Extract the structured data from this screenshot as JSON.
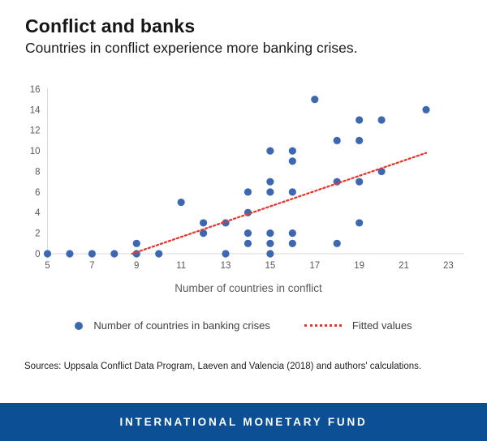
{
  "header": {
    "title": "Conflict and banks",
    "subtitle": "Countries in conflict experience more banking crises."
  },
  "chart_data": {
    "type": "scatter",
    "title": "Conflict and banks",
    "xlabel": "Number of countries in conflict",
    "ylabel": "",
    "xlim": [
      5,
      23
    ],
    "ylim": [
      0,
      16
    ],
    "x_ticks": [
      5,
      7,
      9,
      11,
      13,
      15,
      17,
      19,
      21,
      23
    ],
    "y_ticks": [
      0,
      2,
      4,
      6,
      8,
      10,
      12,
      14,
      16
    ],
    "grid": false,
    "legend_position": "bottom",
    "series": [
      {
        "name": "Number of countries in banking crises",
        "type": "scatter",
        "color": "#3d68b1",
        "points": [
          [
            5,
            0
          ],
          [
            6,
            0
          ],
          [
            7,
            0
          ],
          [
            8,
            0
          ],
          [
            9,
            0
          ],
          [
            9,
            1
          ],
          [
            10,
            0
          ],
          [
            11,
            5
          ],
          [
            12,
            2
          ],
          [
            12,
            3
          ],
          [
            13,
            0
          ],
          [
            13,
            3
          ],
          [
            14,
            1
          ],
          [
            14,
            2
          ],
          [
            14,
            4
          ],
          [
            14,
            6
          ],
          [
            15,
            0
          ],
          [
            15,
            1
          ],
          [
            15,
            2
          ],
          [
            15,
            6
          ],
          [
            15,
            7
          ],
          [
            15,
            10
          ],
          [
            16,
            1
          ],
          [
            16,
            2
          ],
          [
            16,
            6
          ],
          [
            16,
            9
          ],
          [
            16,
            10
          ],
          [
            17,
            15
          ],
          [
            18,
            1
          ],
          [
            18,
            7
          ],
          [
            18,
            11
          ],
          [
            19,
            3
          ],
          [
            19,
            7
          ],
          [
            19,
            11
          ],
          [
            19,
            13
          ],
          [
            20,
            8
          ],
          [
            20,
            13
          ],
          [
            22,
            14
          ]
        ]
      },
      {
        "name": "Fitted values",
        "type": "line",
        "style": "dotted",
        "color": "#e8372f",
        "points": [
          [
            8.8,
            0
          ],
          [
            22,
            9.8
          ]
        ]
      }
    ]
  },
  "legend": {
    "series1": "Number of countries in banking crises",
    "series2": "Fitted values"
  },
  "source_note": "Sources: Uppsala Conflict Data Program, Laeven and Valencia (2018) and authors' calculations.",
  "footer": {
    "text": "INTERNATIONAL MONETARY FUND"
  },
  "colors": {
    "dot": "#3d68b1",
    "fitted_line": "#e8372f",
    "axis_line": "#d9d9d9",
    "tick_text": "#595959",
    "footer_bg": "#0d4f94"
  }
}
